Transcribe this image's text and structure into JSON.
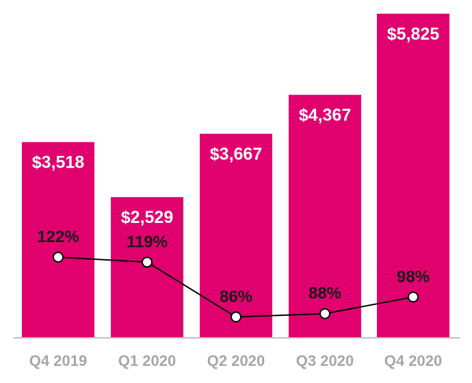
{
  "chart_data": {
    "type": "bar",
    "categories": [
      "Q4 2019",
      "Q1 2020",
      "Q2 2020",
      "Q3 2020",
      "Q4 2020"
    ],
    "series": [
      {
        "type": "bar",
        "values": [
          3518,
          2529,
          3667,
          4367,
          5825
        ],
        "labels": [
          "$3,518",
          "$2,529",
          "$3,667",
          "$4,367",
          "$5,825"
        ],
        "color": "#E0006E"
      },
      {
        "type": "line",
        "values": [
          122,
          119,
          86,
          88,
          98
        ],
        "labels": [
          "122%",
          "119%",
          "86%",
          "88%",
          "98%"
        ],
        "color": "#000000",
        "marker": "circle-white"
      }
    ],
    "ylim": [
      0,
      5825
    ],
    "line_ylim": [
      80,
      122
    ],
    "grid": false,
    "legend": "none",
    "title": "",
    "xlabel": "",
    "ylabel": ""
  }
}
